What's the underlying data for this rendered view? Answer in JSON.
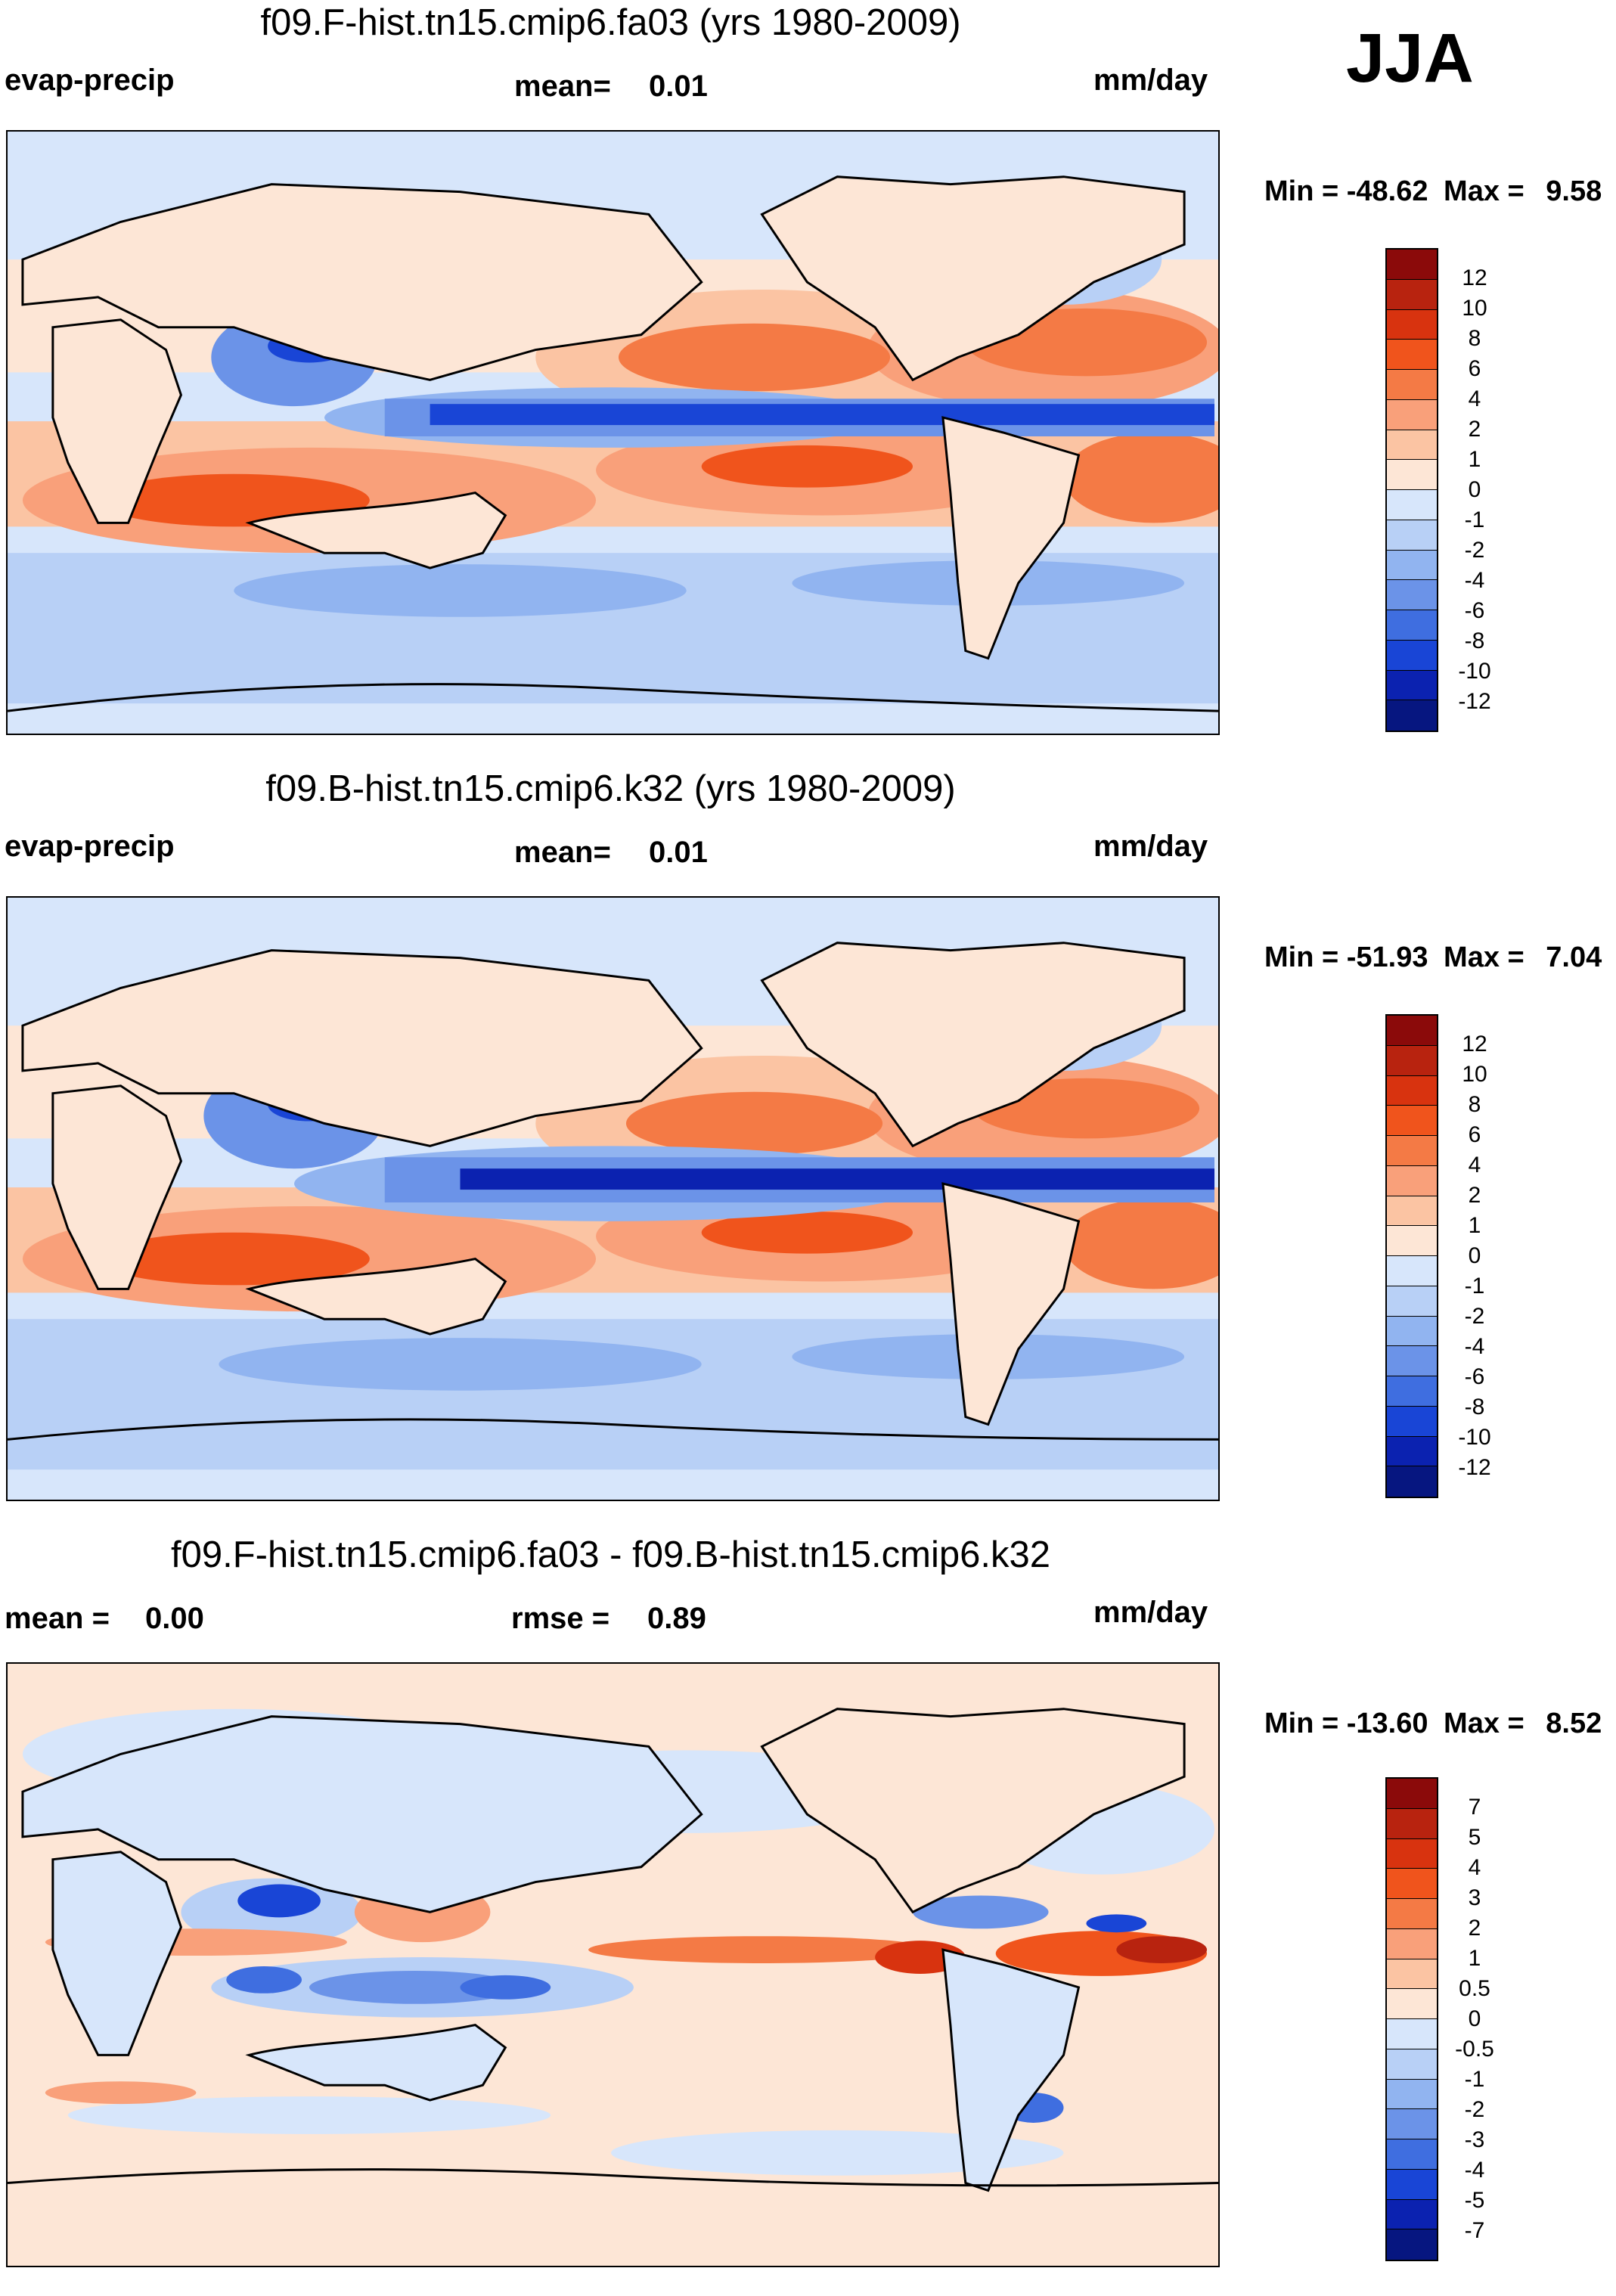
{
  "season": "JJA",
  "panels": [
    {
      "title": "f09.F-hist.tn15.cmip6.fa03 (yrs 1980-2009)",
      "left_label": "evap-precip",
      "center_label": "mean=",
      "center_value": "0.01",
      "right_label": "mm/day",
      "min_label": "Min = -48.62",
      "max_label": "Max =",
      "max_value": "9.58",
      "colorbar_labels": [
        "12",
        "10",
        "8",
        "6",
        "4",
        "2",
        "1",
        "0",
        "-1",
        "-2",
        "-4",
        "-6",
        "-8",
        "-10",
        "-12"
      ],
      "colorbar_colors": [
        "#8b0a0a",
        "#b8230f",
        "#d8330f",
        "#f0541c",
        "#f47a45",
        "#f9a07a",
        "#fbc4a3",
        "#fde6d6",
        "#d7e6fb",
        "#b8d0f6",
        "#91b4f0",
        "#6b93e8",
        "#3f6ee0",
        "#1945d6",
        "#0b22b0",
        "#061680"
      ]
    },
    {
      "title": "f09.B-hist.tn15.cmip6.k32 (yrs 1980-2009)",
      "left_label": "evap-precip",
      "center_label": "mean=",
      "center_value": "0.01",
      "right_label": "mm/day",
      "min_label": "Min = -51.93",
      "max_label": "Max =",
      "max_value": "7.04",
      "colorbar_labels": [
        "12",
        "10",
        "8",
        "6",
        "4",
        "2",
        "1",
        "0",
        "-1",
        "-2",
        "-4",
        "-6",
        "-8",
        "-10",
        "-12"
      ],
      "colorbar_colors": [
        "#8b0a0a",
        "#b8230f",
        "#d8330f",
        "#f0541c",
        "#f47a45",
        "#f9a07a",
        "#fbc4a3",
        "#fde6d6",
        "#d7e6fb",
        "#b8d0f6",
        "#91b4f0",
        "#6b93e8",
        "#3f6ee0",
        "#1945d6",
        "#0b22b0",
        "#061680"
      ]
    },
    {
      "title": "f09.F-hist.tn15.cmip6.fa03 - f09.B-hist.tn15.cmip6.k32",
      "left_label": "mean =",
      "left_value": "0.00",
      "center_label": "rmse =",
      "center_value": "0.89",
      "right_label": "mm/day",
      "min_label": "Min = -13.60",
      "max_label": "Max =",
      "max_value": "8.52",
      "colorbar_labels": [
        "7",
        "5",
        "4",
        "3",
        "2",
        "1",
        "0.5",
        "0",
        "-0.5",
        "-1",
        "-2",
        "-3",
        "-4",
        "-5",
        "-7"
      ],
      "colorbar_colors": [
        "#8b0a0a",
        "#b8230f",
        "#d8330f",
        "#f0541c",
        "#f47a45",
        "#f9a07a",
        "#fbc4a3",
        "#fde6d6",
        "#d7e6fb",
        "#b8d0f6",
        "#91b4f0",
        "#6b93e8",
        "#3f6ee0",
        "#1945d6",
        "#0b22b0",
        "#061680"
      ]
    }
  ]
}
